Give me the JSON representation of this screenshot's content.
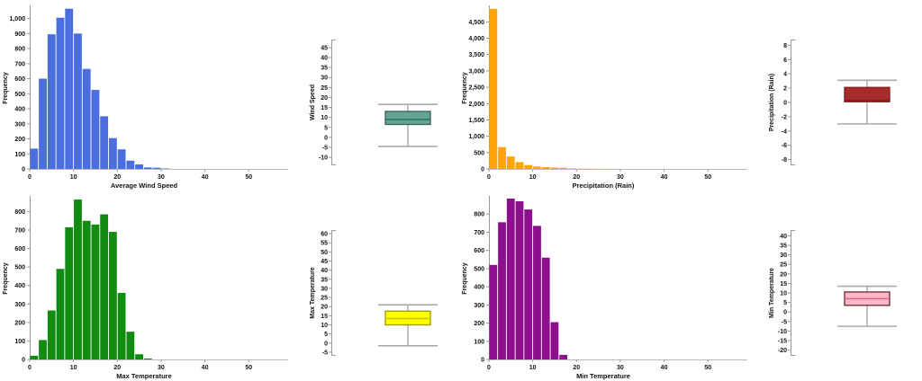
{
  "page": {
    "background": "#ffffff"
  },
  "chart_data": [
    {
      "id": "histogram-average-wind-speed",
      "type": "bar",
      "subtype": "histogram",
      "xlabel": "Average Wind Speed",
      "ylabel": "Frequency",
      "bar_color": "#4a6de0",
      "bin_start": 0,
      "bin_width": 2,
      "values": [
        135,
        600,
        895,
        1005,
        1065,
        900,
        665,
        525,
        350,
        205,
        130,
        55,
        30,
        10,
        8,
        3
      ],
      "x_ticks": [
        0,
        10,
        20,
        30,
        40,
        50
      ],
      "xlim": [
        0,
        59
      ],
      "y_tick_step": 100,
      "y_tick_max": 1000,
      "ylim": [
        0,
        1075
      ],
      "grid": false,
      "legend": "none"
    },
    {
      "id": "boxplot-wind-speed",
      "type": "boxplot",
      "ylabel": "Wind Speed",
      "box_color": "#5fa794",
      "border_color": "#44625a",
      "median_color": "#3a7263",
      "whisker_color": "#999999",
      "tick_start": -10,
      "tick_end": 45,
      "tick_step": 5,
      "domain": [
        -14,
        49
      ],
      "whisker_low": -4.5,
      "q1": 6.5,
      "median": 9,
      "q3": 13,
      "whisker_high": 16.5
    },
    {
      "id": "histogram-precipitation-rain",
      "type": "bar",
      "subtype": "histogram",
      "xlabel": "Precipitation (Rain)",
      "ylabel": "Frequency",
      "bar_color": "#ffa40d",
      "bin_start": 0,
      "bin_width": 2,
      "values": [
        4900,
        670,
        380,
        210,
        120,
        75,
        55,
        40,
        35,
        15,
        10,
        8,
        5,
        4,
        3
      ],
      "x_ticks": [
        0,
        10,
        20,
        30,
        40,
        50
      ],
      "xlim": [
        0,
        59
      ],
      "y_tick_step": 500,
      "y_tick_max": 4500,
      "ylim": [
        0,
        4950
      ],
      "grid": false,
      "legend": "none"
    },
    {
      "id": "boxplot-precipitation-rain",
      "type": "boxplot",
      "ylabel": "Precipitation (Rain)",
      "box_color": "#a82b2b",
      "border_color": "#8a2020",
      "median_color": "#7c1c1c",
      "whisker_color": "#999999",
      "tick_start": -8,
      "tick_end": 8,
      "tick_step": 2,
      "domain": [
        -8.8,
        8.8
      ],
      "whisker_low": -3,
      "q1": 0.1,
      "median": 0.25,
      "q3": 2.1,
      "whisker_high": 3.1
    },
    {
      "id": "histogram-max-temperature",
      "type": "bar",
      "subtype": "histogram",
      "xlabel": "Max Temperature",
      "ylabel": "Frequency",
      "bar_color": "#118b11",
      "bin_start": 0,
      "bin_width": 2,
      "values": [
        20,
        105,
        265,
        490,
        715,
        865,
        750,
        730,
        785,
        690,
        360,
        150,
        28,
        5
      ],
      "x_ticks": [
        0,
        10,
        20,
        30,
        40,
        50
      ],
      "xlim": [
        0,
        59
      ],
      "y_tick_step": 100,
      "y_tick_max": 800,
      "ylim": [
        0,
        875
      ],
      "grid": false,
      "legend": "none"
    },
    {
      "id": "boxplot-max-temperature",
      "type": "boxplot",
      "ylabel": "Max Temperature",
      "box_color": "#ffff00",
      "border_color": "#a0a000",
      "median_color": "#d8c400",
      "whisker_color": "#999999",
      "tick_start": -5,
      "tick_end": 60,
      "tick_step": 5,
      "domain": [
        -7,
        62
      ],
      "whisker_low": -1.5,
      "q1": 10,
      "median": 13.5,
      "q3": 17.5,
      "whisker_high": 21
    },
    {
      "id": "histogram-min-temperature",
      "type": "bar",
      "subtype": "histogram",
      "xlabel": "Min Temperature",
      "ylabel": "Frequency",
      "bar_color": "#8c0f8e",
      "bin_start": 0,
      "bin_width": 2,
      "values": [
        520,
        755,
        885,
        870,
        825,
        735,
        560,
        205,
        25
      ],
      "x_ticks": [
        0,
        10,
        20,
        30,
        40,
        50
      ],
      "xlim": [
        0,
        59
      ],
      "y_tick_step": 100,
      "y_tick_max": 800,
      "ylim": [
        0,
        890
      ],
      "grid": false,
      "legend": "none"
    },
    {
      "id": "boxplot-min-temperature",
      "type": "boxplot",
      "ylabel": "Min Temperature",
      "box_color": "#ffb6c8",
      "border_color": "#74333f",
      "median_color": "#cf6e84",
      "whisker_color": "#999999",
      "tick_start": -20,
      "tick_end": 40,
      "tick_step": 5,
      "domain": [
        -23,
        43
      ],
      "whisker_low": -7.5,
      "q1": 3.5,
      "median": 7,
      "q3": 10.5,
      "whisker_high": 13.5
    }
  ]
}
